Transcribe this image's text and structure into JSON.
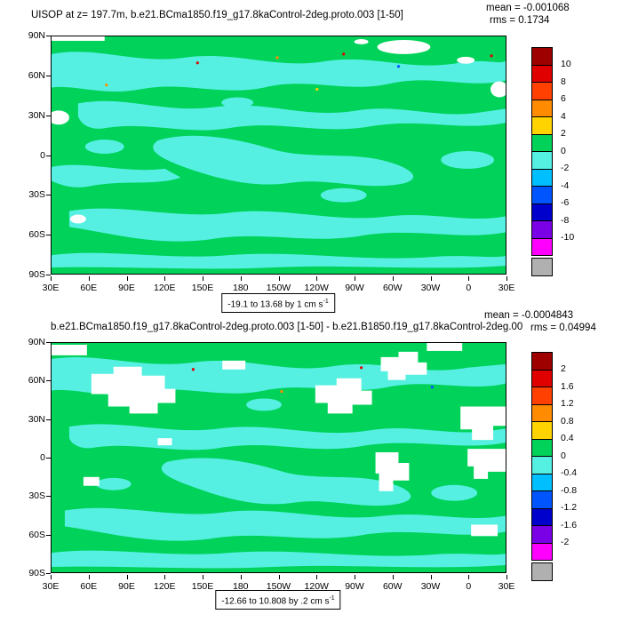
{
  "panels": {
    "top": {
      "title": "UISOP at z= 197.7m, b.e21.BCma1850.f19_g17.8kaControl-2deg.proto.003 [1-50]",
      "mean": "mean = -0.001068",
      "rms": "rms = 0.1734",
      "range_label": "-19.1 to 13.68 by 1 cm s",
      "range_exp": "-1",
      "colorbar_labels": [
        "10",
        "8",
        "6",
        "4",
        "2",
        "0",
        "-2",
        "-4",
        "-6",
        "-8",
        "-10"
      ]
    },
    "bottom": {
      "title": "b.e21.BCma1850.f19_g17.8kaControl-2deg.proto.003 [1-50] - b.e21.B1850.f19_g17.8kaControl-2deg.00",
      "mean": "mean = -0.0004843",
      "rms": "rms = 0.04994",
      "range_label": "-12.66 to 10.808 by .2 cm s",
      "range_exp": "-1",
      "colorbar_labels": [
        "2",
        "1.6",
        "1.2",
        "0.8",
        "0.4",
        "0",
        "-0.4",
        "-0.8",
        "-1.2",
        "-1.6",
        "-2"
      ]
    }
  },
  "axes": {
    "yticks": [
      "90N",
      "60N",
      "30N",
      "0",
      "30S",
      "60S",
      "90S"
    ],
    "xticks": [
      "30E",
      "60E",
      "90E",
      "120E",
      "150E",
      "180",
      "150W",
      "120W",
      "90W",
      "60W",
      "30W",
      "0",
      "30E"
    ]
  },
  "colors": {
    "ocean_green": "#00d25a",
    "cyan_patch": "#55f0e1",
    "land_white": "#ffffff",
    "colorbar": [
      "#9e0000",
      "#e00000",
      "#ff4000",
      "#ff8c00",
      "#ffd300",
      "#00d25a",
      "#55f0e1",
      "#00bfff",
      "#0055ff",
      "#0000cd",
      "#7a00e6",
      "#ff00ff",
      "#b0b0b0"
    ]
  },
  "chart_data": [
    {
      "type": "heatmap",
      "title": "UISOP at z= 197.7m, b.e21.BCma1850.f19_g17.8kaControl-2deg.proto.003 [1-50]",
      "variable": "UISOP",
      "depth": "z= 197.7m",
      "units": "cm s-1",
      "mean": -0.001068,
      "rms": 0.1734,
      "data_min": -19.1,
      "data_max": 13.68,
      "contour_interval": 1,
      "colorbar_levels": [
        10,
        8,
        6,
        4,
        2,
        0,
        -2,
        -4,
        -6,
        -8,
        -10
      ],
      "x_ticks": [
        "30E",
        "60E",
        "90E",
        "120E",
        "150E",
        "180",
        "150W",
        "120W",
        "90W",
        "60W",
        "30W",
        "0",
        "30E"
      ],
      "y_ticks": [
        "90N",
        "60N",
        "30N",
        "0",
        "30S",
        "60S",
        "90S"
      ],
      "legend_position": "right",
      "grid": false,
      "note": "global lat-lon filled-contour map; field dominated by values between -2 and 2 cm/s (green positive, cyan negative); missing/land cells white"
    },
    {
      "type": "heatmap",
      "title": "b.e21.BCma1850.f19_g17.8kaControl-2deg.proto.003 [1-50] - b.e21.B1850.f19_g17.8kaControl-2deg.00",
      "variable": "UISOP difference",
      "units": "cm s-1",
      "mean": -0.0004843,
      "rms": 0.04994,
      "data_min": -12.66,
      "data_max": 10.808,
      "contour_interval": 0.2,
      "colorbar_levels": [
        2,
        1.6,
        1.2,
        0.8,
        0.4,
        0,
        -0.4,
        -0.8,
        -1.2,
        -1.6,
        -2
      ],
      "x_ticks": [
        "30E",
        "60E",
        "90E",
        "120E",
        "150E",
        "180",
        "150W",
        "120W",
        "90W",
        "60W",
        "30W",
        "0",
        "30E"
      ],
      "y_ticks": [
        "90N",
        "60N",
        "30N",
        "0",
        "30S",
        "60S",
        "90S"
      ],
      "legend_position": "right",
      "grid": false,
      "note": "difference map; values mostly between -0.4 and 0.4 cm/s (green/cyan); larger white masked regions"
    }
  ]
}
